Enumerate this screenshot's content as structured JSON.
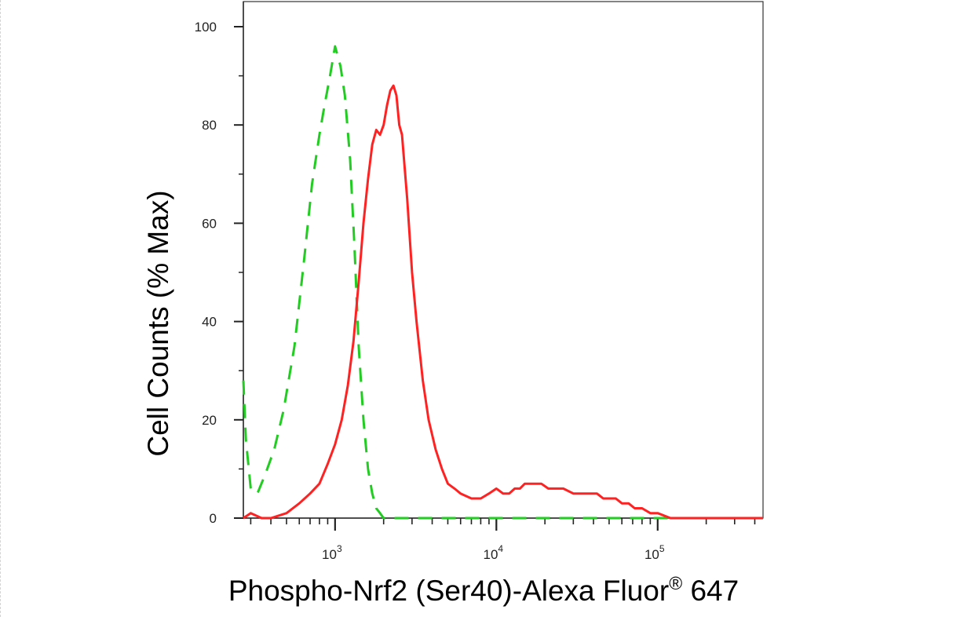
{
  "chart_data": {
    "type": "line",
    "title": "",
    "xlabel": "Phospho-Nrf2 (Ser40)-Alexa Fluor",
    "xlabel_super": "®",
    "xlabel_suffix": " 647",
    "ylabel": "Cell Counts (% Max)",
    "x_scale": "log",
    "xlim": [
      270,
      450000
    ],
    "ylim": [
      0,
      100
    ],
    "grid": false,
    "legend": "none",
    "x_ticks": [
      {
        "value": 1000,
        "base": "10",
        "exp": "3"
      },
      {
        "value": 10000,
        "base": "10",
        "exp": "4"
      },
      {
        "value": 100000,
        "base": "10",
        "exp": "5"
      }
    ],
    "y_ticks": [
      {
        "value": 0,
        "label": "0"
      },
      {
        "value": 20,
        "label": "20"
      },
      {
        "value": 40,
        "label": "40"
      },
      {
        "value": 60,
        "label": "60"
      },
      {
        "value": 80,
        "label": "80"
      },
      {
        "value": 100,
        "label": "100"
      }
    ],
    "series": [
      {
        "color": "#22cc22",
        "style": "dashed",
        "x": [
          270,
          280,
          300,
          330,
          370,
          420,
          480,
          560,
          640,
          720,
          800,
          860,
          930,
          1000,
          1080,
          1150,
          1240,
          1320,
          1400,
          1500,
          1600,
          1700,
          1800,
          1900,
          2000,
          2200,
          3000,
          10000,
          100000,
          450000
        ],
        "y": [
          28,
          16,
          6,
          5,
          9,
          14,
          22,
          35,
          52,
          68,
          78,
          84,
          90,
          96,
          92,
          86,
          73,
          55,
          35,
          20,
          10,
          5,
          2,
          1,
          0,
          0,
          0,
          0,
          0,
          0
        ]
      },
      {
        "color": "#ff2222",
        "style": "solid",
        "x": [
          270,
          300,
          350,
          400,
          500,
          600,
          700,
          800,
          900,
          1000,
          1100,
          1200,
          1300,
          1400,
          1500,
          1600,
          1700,
          1800,
          1900,
          2000,
          2100,
          2200,
          2300,
          2400,
          2500,
          2600,
          2800,
          3000,
          3200,
          3500,
          3800,
          4200,
          4600,
          5000,
          5500,
          6000,
          7000,
          8000,
          9000,
          10000,
          11000,
          12000,
          13000,
          14000,
          15000,
          17000,
          19000,
          21000,
          23000,
          26000,
          30000,
          34000,
          38000,
          42000,
          46000,
          50000,
          55000,
          60000,
          66000,
          72000,
          80000,
          90000,
          100000,
          120000,
          150000,
          200000,
          300000,
          450000
        ],
        "y": [
          0,
          1,
          0,
          0,
          1,
          3,
          5,
          7,
          11,
          15,
          20,
          27,
          36,
          48,
          60,
          69,
          76,
          79,
          78,
          80,
          84,
          87,
          88,
          86,
          80,
          78,
          65,
          50,
          40,
          28,
          20,
          14,
          10,
          7,
          6,
          5,
          4,
          4,
          5,
          6,
          5,
          5,
          6,
          6,
          7,
          7,
          7,
          6,
          6,
          6,
          5,
          5,
          5,
          5,
          4,
          4,
          4,
          3,
          3,
          2,
          2,
          1,
          1,
          0,
          0,
          0,
          0,
          0
        ]
      }
    ]
  }
}
